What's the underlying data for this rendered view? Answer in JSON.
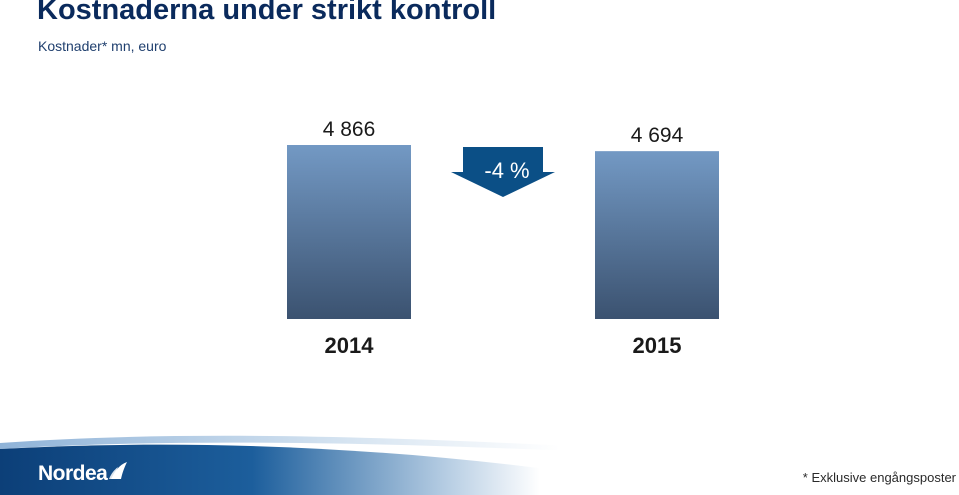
{
  "header": {
    "title": "Kostnaderna under strikt kontroll",
    "subtitle": "Kostnader* mn, euro"
  },
  "chart_data": {
    "type": "bar",
    "categories": [
      "2014",
      "2015"
    ],
    "values": [
      4866,
      4694
    ],
    "value_labels": [
      "4 866",
      "4 694"
    ],
    "change_label": "-4 %",
    "ylim": [
      0,
      4866
    ],
    "grid": false,
    "colors": {
      "bar_top": "#7399c4",
      "bar_bottom": "#3b5270",
      "arrow": "#0b4f86"
    }
  },
  "footer": {
    "logo": "Nordea",
    "footnote": "* Exklusive engångsposter"
  }
}
